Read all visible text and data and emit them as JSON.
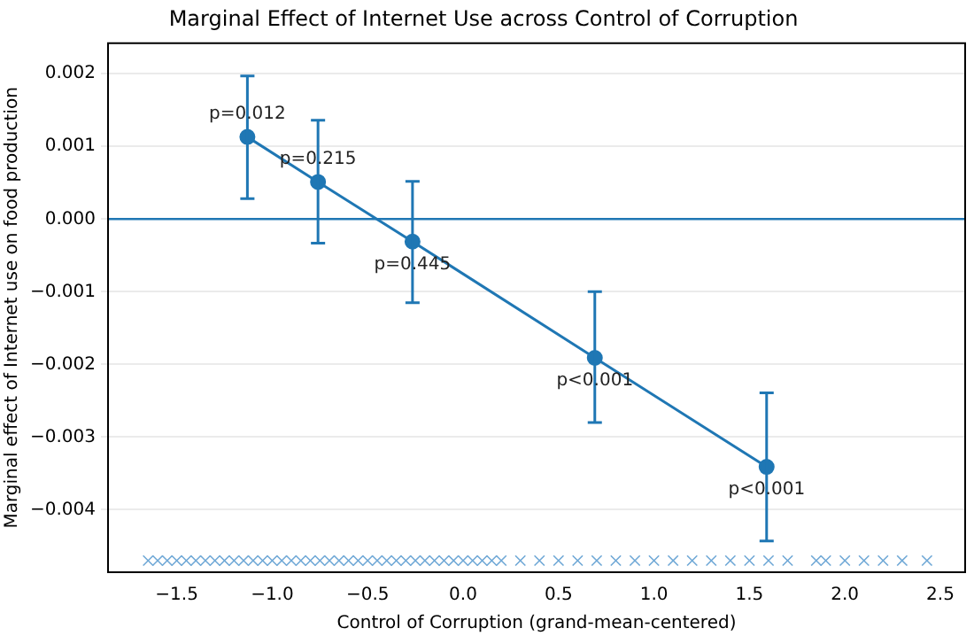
{
  "chart_data": {
    "type": "line",
    "title": "Marginal Effect of Internet Use across Control of Corruption",
    "xlabel": "Control of Corruption (grand-mean-centered)",
    "ylabel": "Marginal effect of Internet use on food production",
    "xlim": [
      -1.86,
      2.63
    ],
    "xticks": [
      {
        "value": -1.5,
        "label": "−1.5"
      },
      {
        "value": -1.0,
        "label": "−1.0"
      },
      {
        "value": -0.5,
        "label": "−0.5"
      },
      {
        "value": 0,
        "label": "0.0"
      },
      {
        "value": 0.5,
        "label": "0.5"
      },
      {
        "value": 1.0,
        "label": "1.0"
      },
      {
        "value": 1.5,
        "label": "1.5"
      },
      {
        "value": 2.0,
        "label": "2.0"
      },
      {
        "value": 2.5,
        "label": "2.5"
      }
    ],
    "ylim": [
      -0.00486,
      0.00242
    ],
    "yticks": [
      {
        "value": -0.004,
        "label": "−0.004"
      },
      {
        "value": -0.003,
        "label": "−0.003"
      },
      {
        "value": -0.002,
        "label": "−0.002"
      },
      {
        "value": -0.001,
        "label": "−0.001"
      },
      {
        "value": 0,
        "label": "0.000"
      },
      {
        "value": 0.001,
        "label": "0.001"
      },
      {
        "value": 0.002,
        "label": "0.002"
      }
    ],
    "grid": "y",
    "legend": false,
    "series": [
      {
        "color": "#1f77b4",
        "marker": "circle",
        "x": [
          -1.13,
          -0.76,
          -0.265,
          0.69,
          1.59
        ],
        "values": [
          0.00113,
          0.00051,
          -0.00031,
          -0.00191,
          -0.00341
        ],
        "errors": [
          [
            0.00028,
            0.00197
          ],
          [
            -0.00033,
            0.00136
          ],
          [
            -0.00115,
            0.00052
          ],
          [
            -0.0028,
            -0.001
          ],
          [
            -0.00443,
            -0.00239
          ]
        ]
      },
      {
        "type": "scatter",
        "color": "#6fa8d6",
        "marker": "cross",
        "x": [
          -1.65,
          -1.6,
          -1.55,
          -1.5,
          -1.45,
          -1.4,
          -1.35,
          -1.3,
          -1.25,
          -1.2,
          -1.15,
          -1.1,
          -1.05,
          -1.0,
          -0.95,
          -0.9,
          -0.85,
          -0.8,
          -0.75,
          -0.7,
          -0.65,
          -0.6,
          -0.55,
          -0.5,
          -0.45,
          -0.4,
          -0.35,
          -0.3,
          -0.25,
          -0.2,
          -0.15,
          -0.1,
          -0.05,
          0.0,
          0.05,
          0.1,
          0.15,
          0.2,
          0.3,
          0.4,
          0.5,
          0.6,
          0.7,
          0.8,
          0.9,
          1.0,
          1.1,
          1.2,
          1.3,
          1.4,
          1.5,
          1.6,
          1.7,
          1.85,
          1.9,
          2.0,
          2.1,
          2.2,
          2.3,
          2.43
        ],
        "values": [
          -0.0047,
          -0.0047,
          -0.0047,
          -0.0047,
          -0.0047,
          -0.0047,
          -0.0047,
          -0.0047,
          -0.0047,
          -0.0047,
          -0.0047,
          -0.0047,
          -0.0047,
          -0.0047,
          -0.0047,
          -0.0047,
          -0.0047,
          -0.0047,
          -0.0047,
          -0.0047,
          -0.0047,
          -0.0047,
          -0.0047,
          -0.0047,
          -0.0047,
          -0.0047,
          -0.0047,
          -0.0047,
          -0.0047,
          -0.0047,
          -0.0047,
          -0.0047,
          -0.0047,
          -0.0047,
          -0.0047,
          -0.0047,
          -0.0047,
          -0.0047,
          -0.0047,
          -0.0047,
          -0.0047,
          -0.0047,
          -0.0047,
          -0.0047,
          -0.0047,
          -0.0047,
          -0.0047,
          -0.0047,
          -0.0047,
          -0.0047,
          -0.0047,
          -0.0047,
          -0.0047,
          -0.0047,
          -0.0047,
          -0.0047,
          -0.0047,
          -0.0047,
          -0.0047,
          -0.0047
        ]
      }
    ],
    "ref_lines": [
      {
        "axis": "y",
        "value": 0,
        "color": "#1f77b4"
      }
    ],
    "annotations": [
      {
        "text": "p=0.012",
        "x": -1.13,
        "y": 0.00113
      },
      {
        "text": "p=0.215",
        "x": -0.76,
        "y": 0.00051
      },
      {
        "text": "p=0.445",
        "x": -0.265,
        "y": -0.00031
      },
      {
        "text": "p<0.001",
        "x": 0.69,
        "y": -0.00191
      },
      {
        "text": "p<0.001",
        "x": 1.59,
        "y": -0.00341
      }
    ]
  }
}
